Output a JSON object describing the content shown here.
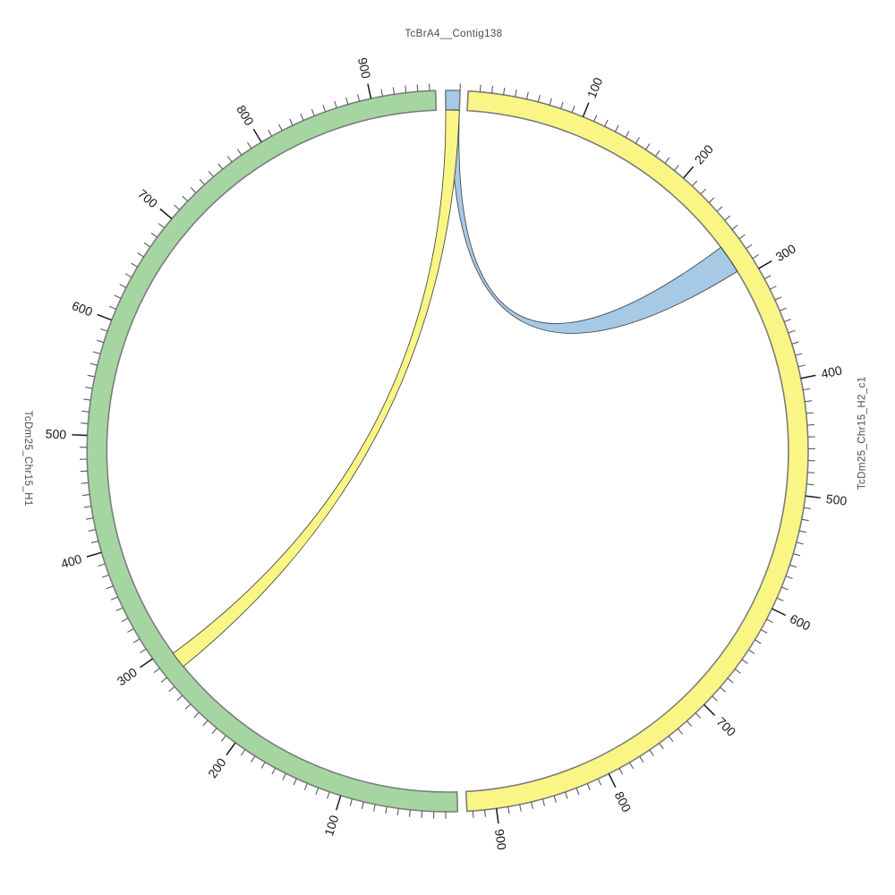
{
  "figure": {
    "background": "#ffffff",
    "description": "Circos-style circular synteny plot with three chromosome bands and two alignment ribbons"
  },
  "chart_data": {
    "type": "circos-chord",
    "layout": {
      "center": [
        500,
        504
      ],
      "inner_radius": 381,
      "outer_radius": 403,
      "tick_minor_len": 8,
      "tick_major_len": 17,
      "tick_label_radius": 438,
      "grid": false,
      "tick_interval_minor": 10,
      "tick_interval_major": 100
    },
    "style": {
      "band_stroke": "#7c7c7c",
      "band_stroke_width": 1.6,
      "ribbon_stroke": "#3a3a3a",
      "ribbon_stroke_width": 0.8,
      "tick_minor_color": "#5a5a5a",
      "tick_minor_width": 1.1,
      "tick_major_color": "#1a1a1a",
      "tick_major_width": 1.5
    },
    "segments": [
      {
        "name": "TcBrA4__Contig138",
        "color": "#a6c9e6",
        "start_deg": -0.3,
        "end_deg": 2.0,
        "units_total": 10,
        "tick_labels": [],
        "name_label": {
          "deg": 0.85,
          "radius": 467,
          "rotation": 0
        }
      },
      {
        "name": "TcDm25_Chr15_H2_c1",
        "color": "#f9f685",
        "start_deg": 3.3,
        "end_deg": 176.9,
        "units_total": 925,
        "tick_labels": [
          "100",
          "200",
          "300",
          "400",
          "500",
          "600",
          "700",
          "800",
          "900"
        ],
        "name_label": {
          "deg": 87.5,
          "radius": 463,
          "rotation": -90
        }
      },
      {
        "name": "TcDm25_Chr15_H1",
        "color": "#a5d6a2",
        "start_deg": 178.4,
        "end_deg": 358.1,
        "units_total": 955,
        "tick_labels": [
          "100",
          "200",
          "300",
          "400",
          "500",
          "600",
          "700",
          "800",
          "900"
        ],
        "name_label": {
          "deg": 269.0,
          "radius": 468,
          "rotation": 90
        }
      }
    ],
    "ribbons": [
      {
        "name": "ribbon-contig138-to-H2c1",
        "color": "#a6c9e6",
        "from_segment": "TcBrA4__Contig138",
        "from_deg": [
          0.7,
          2.0
        ],
        "to_segment": "TcDm25_Chr15_H2_c1",
        "to_deg": [
          53.3,
          58.2
        ],
        "to_units_approx": [
          266,
          293
        ]
      },
      {
        "name": "ribbon-contig138-to-H1",
        "color": "#f9f685",
        "from_segment": "TcBrA4__Contig138",
        "from_deg": [
          -0.3,
          2.0
        ],
        "to_segment": "TcDm25_Chr15_H1",
        "to_deg": [
          230.8,
          233.6
        ],
        "to_units_approx": [
          278,
          293
        ]
      }
    ]
  }
}
